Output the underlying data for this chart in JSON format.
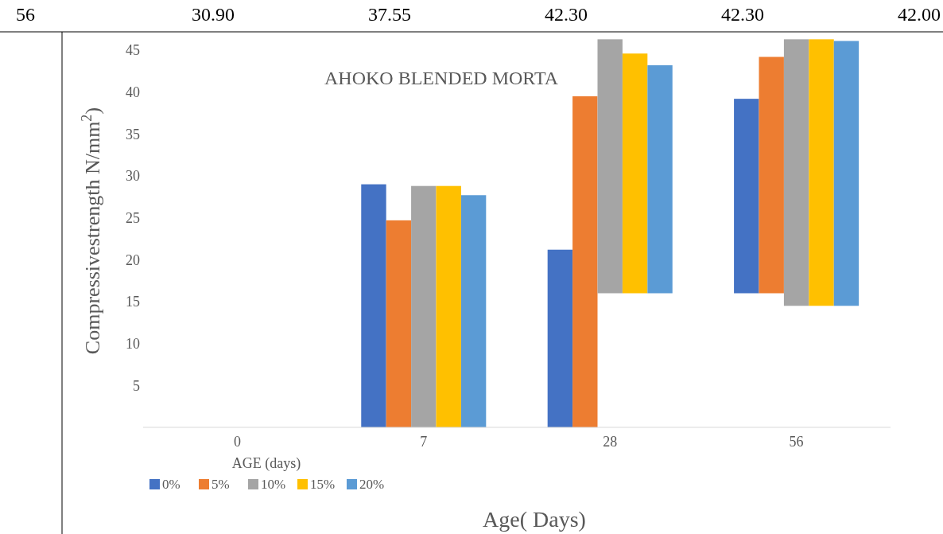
{
  "chart_data": {
    "type": "bar",
    "title": "AHOKO BLENDED MORTA",
    "xlabel": "Age( Days)",
    "ylabel": "Compressivestrength N/mm$^{2}$)",
    "categories": [
      "0",
      "7",
      "28",
      "56"
    ],
    "series": [
      {
        "name": "0%",
        "color": "#4472c4",
        "values": [
          null,
          29.0,
          21.2,
          23.2
        ],
        "base": [
          null,
          0,
          0,
          16
        ]
      },
      {
        "name": "5%",
        "color": "#ed7d31",
        "values": [
          null,
          24.7,
          39.5,
          28.2
        ],
        "base": [
          null,
          0,
          0,
          16
        ]
      },
      {
        "name": "10%",
        "color": "#a5a5a5",
        "values": [
          null,
          28.8,
          30.3,
          31.8
        ],
        "base": [
          null,
          0,
          16,
          14.5
        ]
      },
      {
        "name": "15%",
        "color": "#ffc000",
        "values": [
          null,
          28.8,
          28.6,
          31.8
        ],
        "base": [
          null,
          0,
          16,
          14.5
        ]
      },
      {
        "name": "20%",
        "color": "#5b9bd5",
        "values": [
          null,
          27.7,
          27.2,
          31.6
        ],
        "base": [
          null,
          0,
          16,
          14.5
        ]
      }
    ],
    "ylim": [
      0,
      47
    ],
    "yticks": [
      5,
      10,
      15,
      20,
      25,
      30,
      35,
      40,
      45
    ],
    "grid": false,
    "legend": "bottom left",
    "annotations": [
      "56",
      "30.90",
      "37.55",
      "42.30",
      "42.30",
      "42.00",
      "AGE (days)"
    ]
  }
}
